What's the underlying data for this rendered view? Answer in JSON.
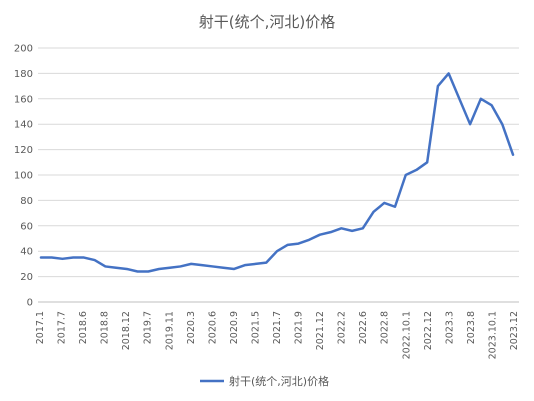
{
  "chart_data": {
    "type": "line",
    "title": "射干(统个,河北)价格",
    "xlabel": "",
    "ylabel": "",
    "ylim": [
      0,
      200
    ],
    "yticks": [
      0,
      20,
      40,
      60,
      80,
      100,
      120,
      140,
      160,
      180,
      200
    ],
    "grid": true,
    "legend_position": "bottom",
    "color": "#4472c4",
    "x_tick_labels": [
      "2017.1",
      "2017.7",
      "2018.6",
      "2018.8",
      "2018.12",
      "2019.7",
      "2019.11",
      "2020.3",
      "2020.6",
      "2020.9",
      "2021.5",
      "2021.7",
      "2021.9",
      "2021.12",
      "2022.2",
      "2022.6",
      "2022.8",
      "2022.10.1",
      "2022.12",
      "2023.3",
      "2023.8",
      "2023.10.1",
      "2023.12"
    ],
    "series": [
      {
        "name": "射干(统个,河北)价格",
        "values": [
          35,
          35,
          34,
          35,
          35,
          33,
          28,
          27,
          26,
          24,
          24,
          26,
          27,
          28,
          30,
          29,
          28,
          27,
          26,
          29,
          30,
          31,
          40,
          45,
          46,
          49,
          53,
          55,
          58,
          56,
          58,
          71,
          78,
          75,
          100,
          104,
          110,
          170,
          180,
          160,
          140,
          160,
          155,
          140,
          116
        ]
      }
    ]
  }
}
